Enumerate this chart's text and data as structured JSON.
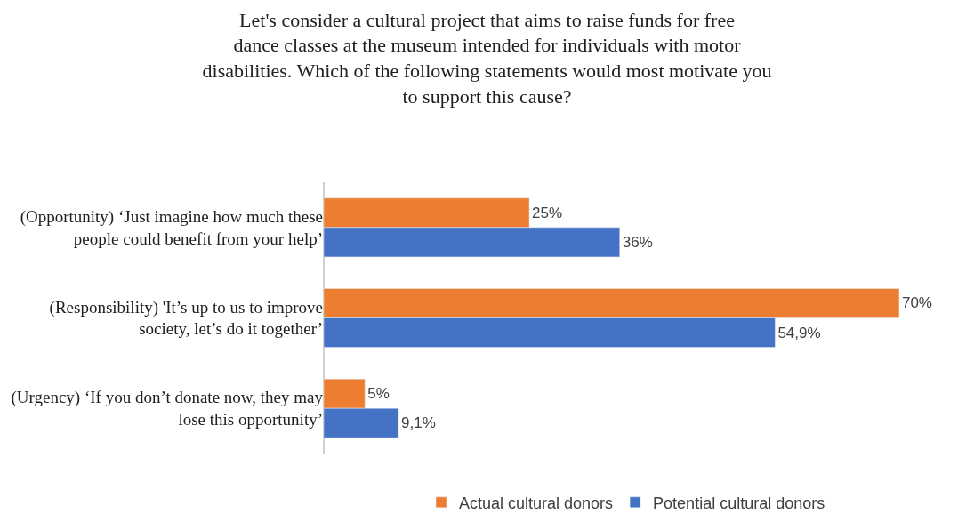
{
  "chart_data": {
    "type": "bar",
    "orientation": "horizontal",
    "title": "Let's consider a cultural project that aims to raise funds for free dance classes at the museum intended for individuals with motor disabilities. Which of the following statements would most motivate you to support this cause?",
    "categories": [
      "(Opportunity) ‘Just imagine how much these people could benefit from your help’",
      "(Responsibility) 'It’s up to us to improve society, let’s do it together’",
      "(Urgency) ‘If you don’t donate now, they may lose this opportunity’"
    ],
    "series": [
      {
        "name": "Actual cultural donors",
        "color": "#ed7d31",
        "values": [
          25,
          70,
          5
        ],
        "value_labels": [
          "25%",
          "70%",
          "5%"
        ]
      },
      {
        "name": "Potential cultural donors",
        "color": "#4472c4",
        "values": [
          36,
          54.9,
          9.1
        ],
        "value_labels": [
          "36%",
          "54,9%",
          "9,1%"
        ]
      }
    ],
    "legend": "bottom"
  }
}
